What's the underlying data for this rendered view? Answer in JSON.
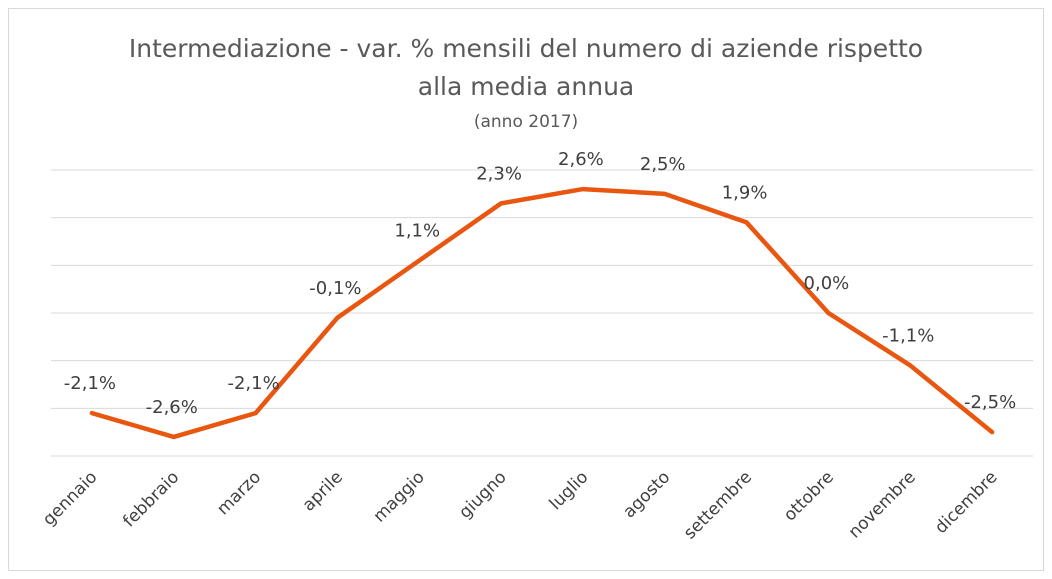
{
  "chart_data": {
    "type": "line",
    "title": "Intermediazione - var. % mensili del numero di aziende rispetto alla media annua",
    "subtitle": "(anno 2017)",
    "categories": [
      "gennaio",
      "febbraio",
      "marzo",
      "aprile",
      "maggio",
      "giugno",
      "luglio",
      "agosto",
      "settembre",
      "ottobre",
      "novembre",
      "dicembre"
    ],
    "series": [
      {
        "color": "#e8560f",
        "values": [
          -2.1,
          -2.6,
          -2.1,
          -0.1,
          1.1,
          2.3,
          2.6,
          2.5,
          1.9,
          0.0,
          -1.1,
          -2.5
        ],
        "value_labels": [
          "-2,1%",
          "-2,6%",
          "-2,1%",
          "-0,1%",
          "1,1%",
          "2,3%",
          "2,6%",
          "2,5%",
          "1,9%",
          "0,0%",
          "-1,1%",
          "-2,5%"
        ]
      }
    ],
    "ylim": [
      -3,
      3
    ],
    "yticks": [
      -3,
      -2,
      -1,
      0,
      1,
      2,
      3
    ],
    "grid": true
  }
}
